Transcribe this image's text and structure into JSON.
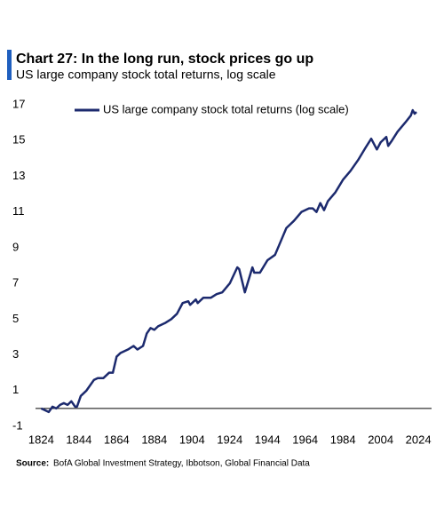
{
  "chart_data": {
    "type": "line",
    "title": "Chart 27: In the long run, stock prices go up",
    "subtitle": "US large  company stock total returns, log scale",
    "source_label": "Source:",
    "source": "BofA Global Investment Strategy, Ibbotson,  Global Financial Data",
    "legend": "top-left",
    "xlim": [
      1821,
      2031
    ],
    "xticks": [
      1824,
      1844,
      1864,
      1884,
      1904,
      1924,
      1944,
      1964,
      1984,
      2004,
      2024
    ],
    "ylim": [
      -1,
      17
    ],
    "yticks": [
      -1,
      1,
      3,
      5,
      7,
      9,
      11,
      13,
      15,
      17
    ],
    "x": [
      1824,
      1826,
      1828,
      1830,
      1832,
      1834,
      1836,
      1838,
      1840,
      1842,
      1843,
      1845,
      1848,
      1852,
      1854,
      1857,
      1860,
      1862,
      1864,
      1866,
      1870,
      1873,
      1875,
      1878,
      1880,
      1882,
      1884,
      1886,
      1890,
      1893,
      1896,
      1899,
      1902,
      1903,
      1906,
      1907,
      1910,
      1914,
      1917,
      1920,
      1924,
      1928,
      1929,
      1932,
      1936,
      1937,
      1940,
      1944,
      1948,
      1952,
      1954,
      1956,
      1958,
      1962,
      1966,
      1968,
      1970,
      1972,
      1974,
      1976,
      1980,
      1984,
      1988,
      1992,
      1996,
      1999,
      2002,
      2004,
      2007,
      2008,
      2010,
      2013,
      2017,
      2020,
      2021,
      2022,
      2023
    ],
    "series": [
      {
        "name": "US large company stock total returns (log scale)",
        "color": "#1c2a6e",
        "values": [
          0.0,
          -0.1,
          -0.2,
          0.1,
          0.0,
          0.2,
          0.3,
          0.2,
          0.4,
          0.1,
          0.1,
          0.7,
          1.0,
          1.6,
          1.7,
          1.7,
          2.0,
          2.0,
          2.9,
          3.1,
          3.3,
          3.5,
          3.3,
          3.5,
          4.2,
          4.5,
          4.4,
          4.6,
          4.8,
          5.0,
          5.3,
          5.9,
          6.0,
          5.8,
          6.1,
          5.9,
          6.2,
          6.2,
          6.4,
          6.5,
          7.0,
          7.9,
          7.8,
          6.5,
          7.9,
          7.6,
          7.6,
          8.3,
          8.6,
          9.6,
          10.1,
          10.3,
          10.5,
          11.0,
          11.2,
          11.2,
          11.0,
          11.5,
          11.1,
          11.6,
          12.1,
          12.8,
          13.3,
          13.9,
          14.6,
          15.1,
          14.5,
          14.9,
          15.2,
          14.7,
          15.0,
          15.5,
          16.0,
          16.4,
          16.7,
          16.5,
          16.6
        ]
      }
    ]
  }
}
